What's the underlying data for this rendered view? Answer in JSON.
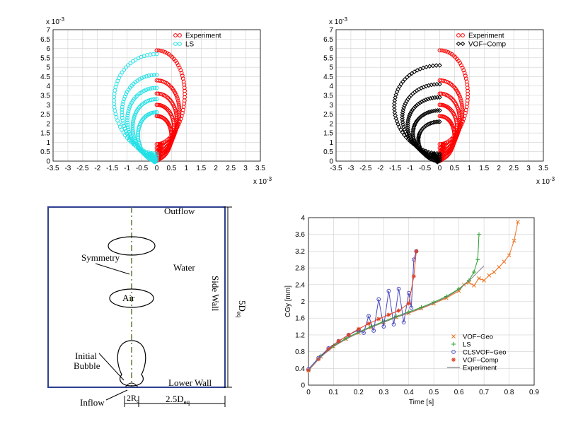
{
  "colors": {
    "experiment": "#ff0000",
    "ls": "#22e0e6",
    "vof_comp": "#000000",
    "grid": "#d0d0d0",
    "wall": "#2e3f8f",
    "symmetry": "#5a7a2a",
    "vof_geo": "#f07020",
    "ls_line": "#2ca02c",
    "clsvof_geo": "#4a4ac0",
    "vof_comp_line": "#e04020",
    "experiment_line": "#808080"
  },
  "chart_data": [
    {
      "type": "scatter",
      "xlim": [
        -0.0035,
        0.0035
      ],
      "ylim": [
        0,
        0.007
      ],
      "x_ticks": [
        "-3.5",
        "-3",
        "-2.5",
        "-2",
        "-1.5",
        "-1",
        "-0.5",
        "0",
        "0.5",
        "1",
        "1.5",
        "2",
        "2.5",
        "3",
        "3.5"
      ],
      "y_ticks": [
        "0",
        "0.5",
        "1",
        "1.5",
        "2",
        "2.5",
        "3",
        "3.5",
        "4",
        "4.5",
        "5",
        "5.5",
        "6",
        "6.5",
        "7"
      ],
      "x_exponent": "x 10",
      "x_exponent_power": "-3",
      "y_exponent": "x 10",
      "y_exponent_power": "-3",
      "grid": true,
      "legend": "top-right",
      "series": [
        {
          "name": "Experiment",
          "marker": "circle",
          "color_key": "experiment",
          "side": "right",
          "loops": [
            {
              "top": 0.0059,
              "width": 0.00105,
              "bottom": 0.0009
            },
            {
              "top": 0.0043,
              "width": 0.00085,
              "bottom": 0.0007
            },
            {
              "top": 0.0036,
              "width": 0.00075,
              "bottom": 0.0005
            },
            {
              "top": 0.003,
              "width": 0.00065,
              "bottom": 0.0003
            },
            {
              "top": 0.0024,
              "width": 0.00055,
              "bottom": 0.0001
            }
          ]
        },
        {
          "name": "LS",
          "marker": "circle",
          "color_key": "ls",
          "side": "left",
          "loops": [
            {
              "top": 0.0057,
              "width": 0.0016,
              "bottom": 0.0004
            },
            {
              "top": 0.0046,
              "width": 0.0013,
              "bottom": 0.0003
            },
            {
              "top": 0.0039,
              "width": 0.0011,
              "bottom": 0.0002
            },
            {
              "top": 0.0033,
              "width": 0.0009,
              "bottom": 0.0001
            },
            {
              "top": 0.0026,
              "width": 0.0007,
              "bottom": 0.0
            }
          ]
        }
      ]
    },
    {
      "type": "scatter",
      "xlim": [
        -0.0035,
        0.0035
      ],
      "ylim": [
        0,
        0.007
      ],
      "x_ticks": [
        "-3.5",
        "-3",
        "-2.5",
        "-2",
        "-1.5",
        "-1",
        "-0.5",
        "0",
        "0.5",
        "1",
        "1.5",
        "2",
        "2.5",
        "3",
        "3.5"
      ],
      "y_ticks": [
        "0",
        "0.5",
        "1",
        "1.5",
        "2",
        "2.5",
        "3",
        "3.5",
        "4",
        "4.5",
        "5",
        "5.5",
        "6",
        "6.5",
        "7"
      ],
      "x_exponent": "x 10",
      "x_exponent_power": "-3",
      "y_exponent": "x 10",
      "y_exponent_power": "-3",
      "grid": true,
      "legend": "top-right",
      "series": [
        {
          "name": "Experiment",
          "marker": "circle",
          "color_key": "experiment",
          "side": "right",
          "loops": [
            {
              "top": 0.0059,
              "width": 0.00105,
              "bottom": 0.0009
            },
            {
              "top": 0.0043,
              "width": 0.00085,
              "bottom": 0.0007
            },
            {
              "top": 0.0036,
              "width": 0.00075,
              "bottom": 0.0005
            },
            {
              "top": 0.003,
              "width": 0.00065,
              "bottom": 0.0003
            },
            {
              "top": 0.0024,
              "width": 0.00055,
              "bottom": 0.0001
            }
          ]
        },
        {
          "name": "VOF−Comp",
          "marker": "diamond",
          "color_key": "vof_comp",
          "side": "left",
          "loops": [
            {
              "top": 0.0051,
              "width": 0.0017,
              "bottom": 0.0004
            },
            {
              "top": 0.0041,
              "width": 0.0014,
              "bottom": 0.0003
            },
            {
              "top": 0.0034,
              "width": 0.0012,
              "bottom": 0.0002
            },
            {
              "top": 0.0027,
              "width": 0.001,
              "bottom": 0.0001
            },
            {
              "top": 0.0021,
              "width": 0.0008,
              "bottom": 0.0
            }
          ]
        }
      ]
    },
    {
      "type": "line",
      "xlabel": "Time [s]",
      "ylabel": "CGy [mm]",
      "xlim": [
        0,
        0.9
      ],
      "ylim": [
        0,
        4
      ],
      "x_ticks": [
        "0",
        "0.1",
        "0.2",
        "0.3",
        "0.4",
        "0.5",
        "0.6",
        "0.7",
        "0.8",
        "0.9"
      ],
      "y_ticks": [
        "0",
        "0.4",
        "0.8",
        "1.2",
        "1.6",
        "2",
        "2.4",
        "2.8",
        "3.2",
        "3.6",
        "4"
      ],
      "grid": true,
      "legend": "bottom-right",
      "series": [
        {
          "name": "VOF−Geo",
          "marker": "x",
          "color_key": "vof_geo",
          "points": [
            [
              0,
              0.35
            ],
            [
              0.05,
              0.68
            ],
            [
              0.1,
              0.92
            ],
            [
              0.15,
              1.1
            ],
            [
              0.2,
              1.25
            ],
            [
              0.25,
              1.38
            ],
            [
              0.3,
              1.5
            ],
            [
              0.35,
              1.62
            ],
            [
              0.4,
              1.72
            ],
            [
              0.45,
              1.83
            ],
            [
              0.5,
              1.95
            ],
            [
              0.55,
              2.08
            ],
            [
              0.6,
              2.25
            ],
            [
              0.62,
              2.4
            ],
            [
              0.64,
              2.45
            ],
            [
              0.66,
              2.38
            ],
            [
              0.68,
              2.55
            ],
            [
              0.7,
              2.5
            ],
            [
              0.72,
              2.62
            ],
            [
              0.74,
              2.7
            ],
            [
              0.76,
              2.82
            ],
            [
              0.78,
              2.95
            ],
            [
              0.8,
              3.1
            ],
            [
              0.82,
              3.45
            ],
            [
              0.835,
              3.9
            ]
          ]
        },
        {
          "name": "LS",
          "marker": "+",
          "color_key": "ls_line",
          "points": [
            [
              0,
              0.35
            ],
            [
              0.05,
              0.7
            ],
            [
              0.1,
              0.94
            ],
            [
              0.15,
              1.12
            ],
            [
              0.2,
              1.27
            ],
            [
              0.25,
              1.4
            ],
            [
              0.3,
              1.52
            ],
            [
              0.35,
              1.64
            ],
            [
              0.4,
              1.75
            ],
            [
              0.45,
              1.86
            ],
            [
              0.5,
              1.98
            ],
            [
              0.55,
              2.12
            ],
            [
              0.6,
              2.3
            ],
            [
              0.64,
              2.5
            ],
            [
              0.66,
              2.7
            ],
            [
              0.675,
              3.0
            ],
            [
              0.68,
              3.6
            ]
          ]
        },
        {
          "name": "CLSVOF−Geo",
          "marker": "circle",
          "color_key": "clsvof_geo",
          "points": [
            [
              0,
              0.38
            ],
            [
              0.04,
              0.65
            ],
            [
              0.08,
              0.88
            ],
            [
              0.12,
              1.05
            ],
            [
              0.16,
              1.2
            ],
            [
              0.2,
              1.32
            ],
            [
              0.22,
              1.25
            ],
            [
              0.24,
              1.65
            ],
            [
              0.26,
              1.3
            ],
            [
              0.28,
              2.05
            ],
            [
              0.3,
              1.4
            ],
            [
              0.32,
              2.25
            ],
            [
              0.34,
              1.45
            ],
            [
              0.36,
              2.3
            ],
            [
              0.38,
              1.5
            ],
            [
              0.4,
              2.2
            ],
            [
              0.41,
              1.85
            ],
            [
              0.42,
              3.0
            ],
            [
              0.43,
              3.2
            ]
          ]
        },
        {
          "name": "VOF−Comp",
          "marker": "star",
          "color_key": "vof_comp_line",
          "points": [
            [
              0,
              0.36
            ],
            [
              0.04,
              0.62
            ],
            [
              0.08,
              0.86
            ],
            [
              0.12,
              1.05
            ],
            [
              0.16,
              1.2
            ],
            [
              0.2,
              1.34
            ],
            [
              0.24,
              1.47
            ],
            [
              0.28,
              1.58
            ],
            [
              0.32,
              1.68
            ],
            [
              0.36,
              1.78
            ],
            [
              0.4,
              1.95
            ],
            [
              0.42,
              2.6
            ],
            [
              0.43,
              3.2
            ]
          ]
        },
        {
          "name": "Experiment",
          "marker": "none",
          "color_key": "experiment_line",
          "points": [
            [
              0,
              0.36
            ],
            [
              0.05,
              0.68
            ],
            [
              0.1,
              0.92
            ],
            [
              0.15,
              1.1
            ],
            [
              0.2,
              1.25
            ],
            [
              0.25,
              1.38
            ],
            [
              0.3,
              1.5
            ],
            [
              0.35,
              1.62
            ],
            [
              0.4,
              1.73
            ],
            [
              0.45,
              1.84
            ],
            [
              0.5,
              1.96
            ],
            [
              0.55,
              2.1
            ],
            [
              0.6,
              2.28
            ],
            [
              0.65,
              2.55
            ],
            [
              0.7,
              2.85
            ]
          ]
        }
      ]
    }
  ],
  "diagram": {
    "outflow": "Outflow",
    "symmetry": "Symmetry",
    "water": "Water",
    "air": "Air",
    "side_wall": "Side Wall",
    "five_d": "5D",
    "five_d_sub": "eq",
    "initial": "Initial",
    "bubble": "Bubble",
    "lower_wall": "Lower Wall",
    "inflow": "Inflow",
    "two_r": "2R",
    "two_r_sub": "c",
    "two_five_d": "2.5D",
    "two_five_d_sub": "eq"
  }
}
